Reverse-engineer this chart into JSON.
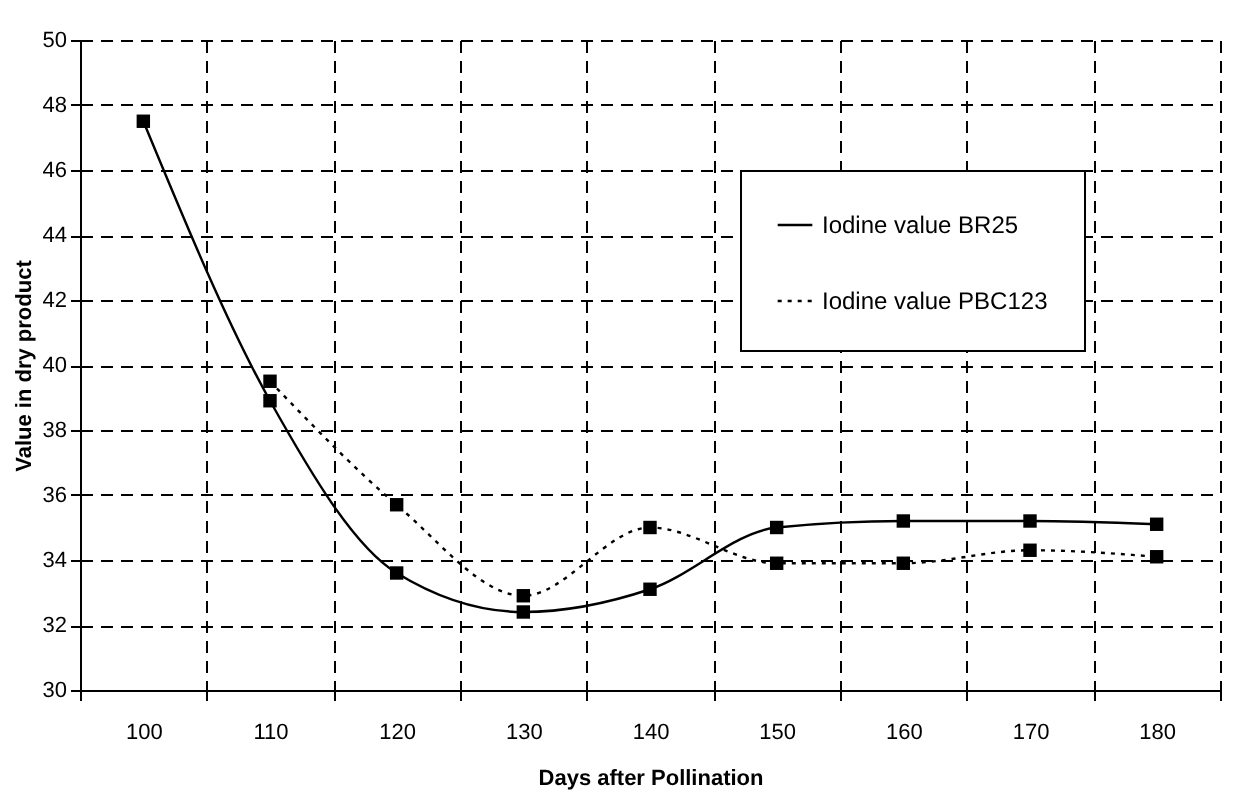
{
  "chart_data": {
    "type": "line",
    "xlabel": "Days after Pollination",
    "ylabel": "Value in dry product",
    "categories": [
      "100",
      "110",
      "120",
      "130",
      "140",
      "150",
      "160",
      "170",
      "180"
    ],
    "series": [
      {
        "name": "Iodine value BR25",
        "color": "#000000",
        "line_style": "solid",
        "values": [
          47.5,
          38.9,
          33.6,
          32.4,
          33.1,
          35.0,
          35.2,
          35.2,
          35.1
        ]
      },
      {
        "name": "Iodine value PBC123",
        "color": "#000000",
        "line_style": "dotted",
        "values": [
          null,
          39.5,
          35.7,
          32.9,
          35.0,
          33.9,
          33.9,
          34.3,
          34.1
        ]
      }
    ],
    "ylim": [
      30,
      50
    ],
    "yticks": [
      30,
      32,
      34,
      36,
      38,
      40,
      42,
      44,
      46,
      48,
      50
    ],
    "grid": true,
    "legend": "top right",
    "marker": "square"
  }
}
